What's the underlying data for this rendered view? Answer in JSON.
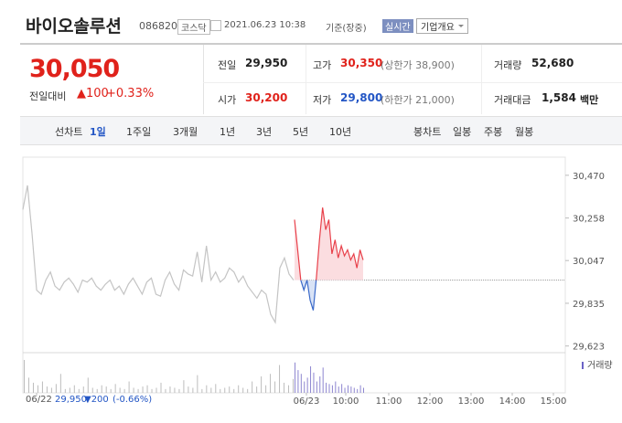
{
  "header": {
    "name": "바이오솔루션",
    "code": "086820",
    "market": "코스닥",
    "datetime": "2021.06.23 10:38",
    "basis": "기준(장중)",
    "realtime_button": "실시간",
    "company_button": "기업개요"
  },
  "quote": {
    "price": "30,050",
    "change_label": "전일대비",
    "change": "▲100",
    "change_rate": "+0.33%",
    "stats": [
      {
        "label": "전일",
        "value": "29,950"
      },
      {
        "label": "고가",
        "value": "30,350",
        "note": "(상한가 38,900)"
      },
      {
        "label": "거래량",
        "value": "52,680"
      },
      {
        "label": "시가",
        "value": "30,200"
      },
      {
        "label": "저가",
        "value": "29,800",
        "note": "(하한가 21,000)"
      },
      {
        "label": "거래대금",
        "value": "1,584",
        "unit": "백만"
      }
    ]
  },
  "tabs": {
    "line_chart": "선차트",
    "periods": [
      "1일",
      "1주일",
      "3개월",
      "1년",
      "3년",
      "5년",
      "10년"
    ],
    "candle_chart": "봉차트",
    "candle_periods": [
      "일봉",
      "주봉",
      "월봉"
    ]
  },
  "chart": {
    "ylim": [
      29590,
      30560
    ],
    "yticks": [
      {
        "value": 30470,
        "label": "30,470"
      },
      {
        "value": 30258,
        "label": "30,258"
      },
      {
        "value": 30047,
        "label": "30,047"
      },
      {
        "value": 29835,
        "label": "29,835"
      },
      {
        "value": 29623,
        "label": "29,623"
      }
    ],
    "previous_close": 29950,
    "previous_day": [
      30300,
      30420,
      30180,
      29900,
      29880,
      29950,
      29990,
      29920,
      29900,
      29940,
      29960,
      29930,
      29890,
      29950,
      29940,
      29960,
      29920,
      29900,
      29930,
      29950,
      29900,
      29920,
      29880,
      29930,
      29960,
      29920,
      29880,
      29940,
      29960,
      29880,
      29870,
      29950,
      29990,
      29930,
      29900,
      30000,
      29980,
      29970,
      30090,
      29940,
      30120,
      29950,
      29990,
      29940,
      29960,
      30010,
      29990,
      29940,
      29970,
      29920,
      29890,
      29860,
      29900,
      29880,
      29780,
      29740,
      30010,
      30060,
      29980,
      29950
    ],
    "today": [
      30250,
      30100,
      29950,
      29900,
      29950,
      29850,
      29800,
      29960,
      30150,
      30310,
      30200,
      30250,
      30080,
      30150,
      30060,
      30120,
      30070,
      30100,
      30050,
      30080,
      30010,
      30100,
      30050
    ],
    "volume_label": "거래량",
    "volume_previous_day": [
      2600,
      1200,
      800,
      600,
      900,
      500,
      400,
      700,
      1500,
      300,
      400,
      600,
      300,
      500,
      1200,
      400,
      300,
      600,
      500,
      300,
      700,
      400,
      300,
      900,
      400,
      300,
      500,
      600,
      300,
      400,
      800,
      300,
      500,
      400,
      300,
      1000,
      500,
      400,
      1400,
      300,
      600,
      400,
      700,
      300,
      400,
      500,
      300,
      600,
      400,
      300,
      900,
      500,
      1300,
      600,
      1500,
      900,
      2200,
      800,
      600,
      1100
    ],
    "volume_today": [
      2400,
      1800,
      1500,
      900,
      1200,
      2100,
      1600,
      900,
      1300,
      2000,
      800,
      700,
      600,
      900,
      500,
      700,
      400,
      600,
      500,
      400,
      300,
      600,
      400
    ],
    "x_labels": [
      "06/22",
      "06/23",
      "10:00",
      "11:00",
      "12:00",
      "13:00",
      "14:00",
      "15:00"
    ],
    "previous_day_summary": {
      "close": "29,950",
      "change": "▼200",
      "rate": "(-0.66%)"
    }
  }
}
